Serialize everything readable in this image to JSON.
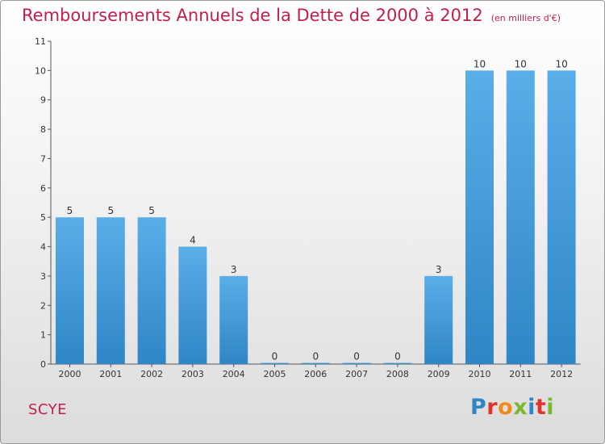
{
  "header": {
    "title": "Remboursements Annuels de la Dette de 2000 à 2012",
    "subtitle": "(en milliers d'€)"
  },
  "footer": {
    "commune": "SCYE",
    "logo_text": "Proxiti"
  },
  "colors": {
    "title": "#c0204a",
    "bar_top": "#5aaee8",
    "bar_bottom": "#2f86c6",
    "logo_letters": [
      "#2f86c6",
      "#e0332a",
      "#f08a1c",
      "#7cb82f",
      "#2f86c6",
      "#e0332a",
      "#7cb82f"
    ]
  },
  "chart_data": {
    "type": "bar",
    "title": "Remboursements Annuels de la Dette de 2000 à 2012",
    "subtitle": "(en milliers d'€)",
    "categories": [
      "2000",
      "2001",
      "2002",
      "2003",
      "2004",
      "2005",
      "2006",
      "2007",
      "2008",
      "2009",
      "2010",
      "2011",
      "2012"
    ],
    "values": [
      5,
      5,
      5,
      4,
      3,
      0,
      0,
      0,
      0,
      3,
      10,
      10,
      10
    ],
    "data_labels": [
      "5",
      "5",
      "5",
      "4",
      "3",
      "0",
      "0",
      "0",
      "0",
      "3",
      "10",
      "10",
      "10"
    ],
    "yticks": [
      "0",
      "1",
      "2",
      "3",
      "4",
      "5",
      "6",
      "7",
      "8",
      "9",
      "10",
      "11"
    ],
    "ylim": [
      0,
      11
    ],
    "xlabel": "",
    "ylabel": "",
    "grid": false,
    "legend": "none"
  }
}
